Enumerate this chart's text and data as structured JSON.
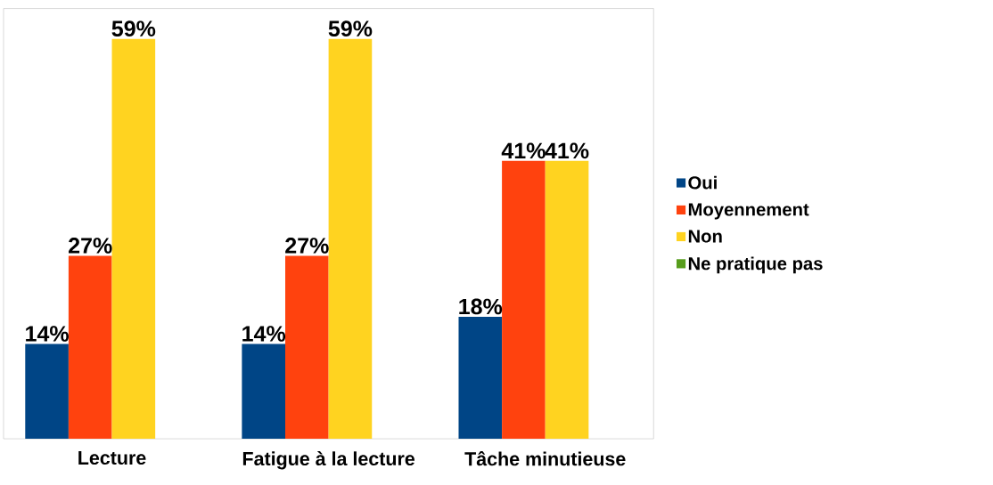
{
  "chart_data": {
    "type": "bar",
    "categories": [
      "Lecture",
      "Fatigue à la lecture",
      "Tâche minutieuse"
    ],
    "series": [
      {
        "name": "Oui",
        "color": "#004586",
        "values": [
          14,
          14,
          18
        ],
        "value_labels": [
          "14%",
          "14%",
          "18%"
        ]
      },
      {
        "name": "Moyennement",
        "color": "#ff420e",
        "values": [
          27,
          27,
          41
        ],
        "value_labels": [
          "27%",
          "27%",
          "41%"
        ]
      },
      {
        "name": "Non",
        "color": "#ffd320",
        "values": [
          59,
          59,
          41
        ],
        "value_labels": [
          "59%",
          "59%",
          "41%"
        ]
      },
      {
        "name": "Ne pratique pas",
        "color": "#579d1c",
        "values": [
          0,
          0,
          0
        ],
        "value_labels": [
          null,
          null,
          null
        ]
      }
    ],
    "legend": "right"
  }
}
